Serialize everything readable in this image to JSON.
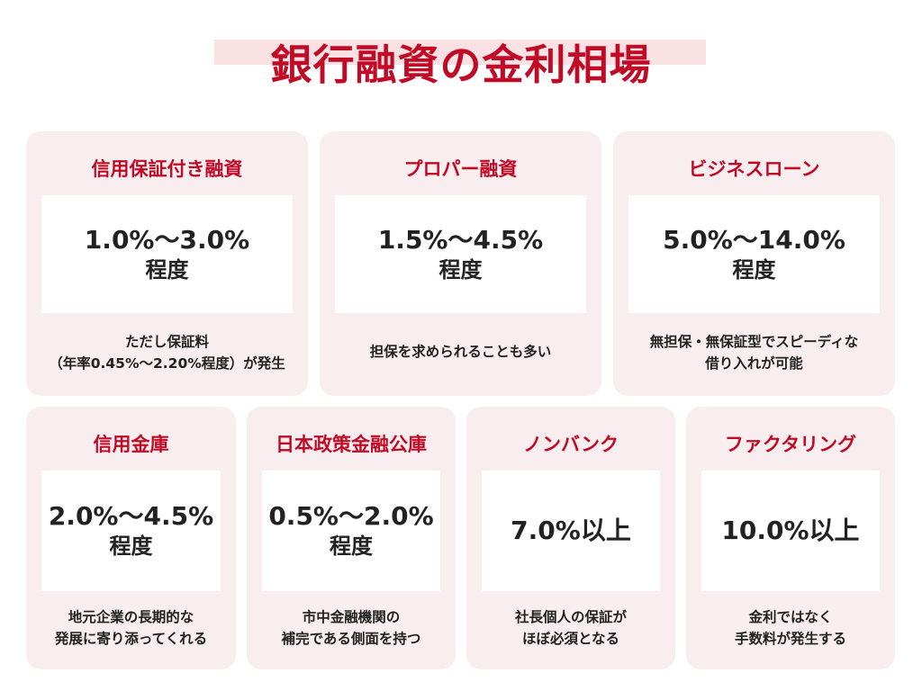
{
  "title": "銀行融資の金利相場",
  "cards": [
    {
      "title": "信用保証付き融資",
      "rate": "1.0%～3.0%",
      "rate_sub": "程度",
      "desc1": "ただし保証料",
      "desc2": "（年率0.45%～2.20%程度）が発生"
    },
    {
      "title": "プロパー融資",
      "rate": "1.5%～4.5%",
      "rate_sub": "程度",
      "desc1": "担保を求められることも多い",
      "desc2": ""
    },
    {
      "title": "ビジネスローン",
      "rate": "5.0%～14.0%",
      "rate_sub": "程度",
      "desc1": "無担保・無保証型でスピーディな",
      "desc2": "借り入れが可能"
    },
    {
      "title": "信用金庫",
      "rate": "2.0%～4.5%",
      "rate_sub": "程度",
      "desc1": "地元企業の長期的な",
      "desc2": "発展に寄り添ってくれる"
    },
    {
      "title": "日本政策金融公庫",
      "rate": "0.5%～2.0%",
      "rate_sub": "程度",
      "desc1": "市中金融機関の",
      "desc2": "補完である側面を持つ"
    },
    {
      "title": "ノンバンク",
      "rate": "7.0%以上",
      "rate_sub": "",
      "desc1": "社長個人の保証が",
      "desc2": "ほぼ必須となる"
    },
    {
      "title": "ファクタリング",
      "rate": "10.0%以上",
      "rate_sub": "",
      "desc1": "金利ではなく",
      "desc2": "手数料が発生する"
    }
  ]
}
